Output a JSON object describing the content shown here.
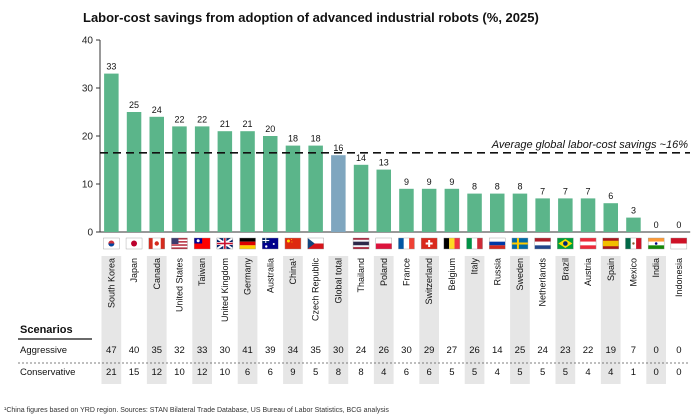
{
  "chart_data": {
    "type": "bar",
    "title": "Labor-cost savings from adoption of advanced industrial robots (%, 2025)",
    "categories": [
      "South Korea",
      "Japan",
      "Canada",
      "United States",
      "Taiwan",
      "United Kingdom",
      "Germany",
      "Australia",
      "China¹",
      "Czech Republic",
      "Global total",
      "Thailand",
      "Poland",
      "France",
      "Switzerland",
      "Belgium",
      "Italy",
      "Russia",
      "Sweden",
      "Netherlands",
      "Brazil",
      "Austria",
      "Spain",
      "Mexico",
      "India",
      "Indonesia"
    ],
    "values": [
      33,
      25,
      24,
      22,
      22,
      21,
      21,
      20,
      18,
      18,
      16,
      14,
      13,
      9,
      9,
      9,
      8,
      8,
      8,
      7,
      7,
      7,
      6,
      3,
      0,
      0
    ],
    "value_labels": [
      "33",
      "25",
      "24",
      "22",
      "22",
      "21",
      "21",
      "20",
      "18",
      "18",
      "16",
      "14",
      "13",
      "9",
      "9",
      "9",
      "8",
      "8",
      "8",
      "7",
      "7",
      "7",
      "6",
      "3",
      "0",
      "0"
    ],
    "highlight_category": "Global total",
    "colors": {
      "bar": "#5bb58a",
      "highlight": "#7fa6bf",
      "band": "#e6e6e6"
    },
    "y_ticks": [
      "0",
      "10",
      "20",
      "30",
      "40"
    ],
    "ylim": [
      0,
      40
    ],
    "average_line": {
      "value": 16.5,
      "label": "Average global labor-cost savings ~16%"
    },
    "flags": [
      "flag-south-korea",
      "flag-japan",
      "flag-canada",
      "flag-united-states",
      "flag-taiwan",
      "flag-united-kingdom",
      "flag-germany",
      "flag-australia",
      "flag-china",
      "flag-czech-republic",
      "flag-global",
      "flag-thailand",
      "flag-poland",
      "flag-france",
      "flag-switzerland",
      "flag-belgium",
      "flag-italy",
      "flag-russia",
      "flag-sweden",
      "flag-netherlands",
      "flag-brazil",
      "flag-austria",
      "flag-spain",
      "flag-mexico",
      "flag-india",
      "flag-indonesia"
    ],
    "scenarios": {
      "label": "Scenarios",
      "rows": [
        {
          "name": "Aggressive",
          "values": [
            "47",
            "40",
            "35",
            "32",
            "33",
            "30",
            "41",
            "39",
            "34",
            "35",
            "30",
            "24",
            "26",
            "30",
            "29",
            "27",
            "26",
            "14",
            "25",
            "24",
            "23",
            "22",
            "19",
            "7",
            "0",
            "0"
          ]
        },
        {
          "name": "Conservative",
          "values": [
            "21",
            "15",
            "12",
            "10",
            "12",
            "10",
            "6",
            "6",
            "9",
            "5",
            "8",
            "8",
            "4",
            "6",
            "6",
            "5",
            "5",
            "4",
            "5",
            "5",
            "5",
            "4",
            "4",
            "1",
            "0",
            "0"
          ]
        }
      ]
    }
  },
  "footnote": "¹China figures based on YRD region. Sources: STAN Bilateral Trade Database, US Bureau of Labor Statistics, BCG analysis"
}
